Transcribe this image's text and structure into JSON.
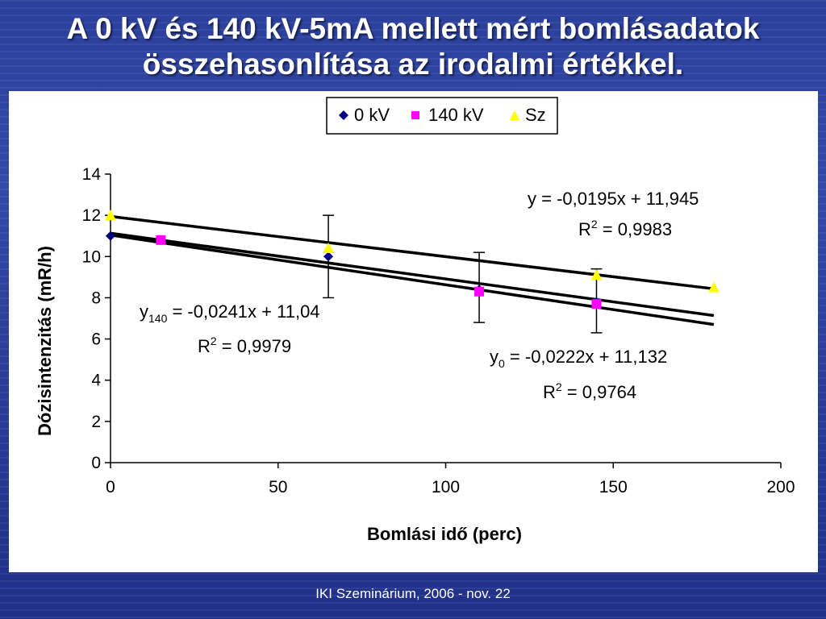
{
  "slide": {
    "title_line1": "A 0 kV és 140 kV-5mA mellett mért bomlásadatok",
    "title_line2": "összehasonlítása az irodalmi értékkel.",
    "footer": "IKI Szeminárium, 2006 - nov. 22"
  },
  "chart_data": {
    "type": "scatter",
    "xlabel": "Bomlási idő (perc)",
    "ylabel": "Dózisintenzitás (mR/h)",
    "xlim": [
      0,
      200
    ],
    "ylim": [
      0,
      14
    ],
    "xticks": [
      0,
      50,
      100,
      150,
      200
    ],
    "yticks": [
      0,
      2,
      4,
      6,
      8,
      10,
      12,
      14
    ],
    "grid": false,
    "legend_position": "top-center",
    "series": [
      {
        "name": "0 kV",
        "marker": "diamond",
        "color": "#000080",
        "x": [
          0,
          65,
          110,
          145
        ],
        "y": [
          11.0,
          10.0,
          8.4,
          7.8
        ],
        "yerr_low": [
          null,
          8.0,
          6.8,
          6.3
        ],
        "yerr_high": [
          null,
          12.0,
          10.2,
          9.4
        ]
      },
      {
        "name": "140 kV",
        "marker": "square",
        "color": "#ff00ff",
        "x": [
          15,
          110,
          145
        ],
        "y": [
          10.8,
          8.3,
          7.7
        ]
      },
      {
        "name": "Sz",
        "marker": "triangle",
        "color": "#ffff00",
        "x": [
          0,
          65,
          145,
          180
        ],
        "y": [
          12.0,
          10.4,
          9.1,
          8.5
        ]
      }
    ],
    "trendlines": [
      {
        "slope": -0.0195,
        "intercept": 11.945,
        "x": [
          0,
          180
        ]
      },
      {
        "slope": -0.0222,
        "intercept": 11.132,
        "x": [
          0,
          180
        ]
      },
      {
        "slope": -0.0241,
        "intercept": 11.04,
        "x": [
          0,
          180
        ]
      }
    ],
    "annotations": {
      "sz_eq": "y = -0,0195x + 11,945",
      "sz_r2_label": "R",
      "sz_r2_value": " = 0,9983",
      "eq140_y": "y",
      "eq140_sub": "140",
      "eq140_rest": " = -0,0241x + 11,04",
      "eq140_r2_label": "R",
      "eq140_r2_value": " = 0,9979",
      "eq0_y": "y",
      "eq0_sub": "0",
      "eq0_rest": " = -0,0222x + 11,132",
      "eq0_r2_label": "R",
      "eq0_r2_value": " = 0,9764",
      "sup2": "2"
    }
  }
}
